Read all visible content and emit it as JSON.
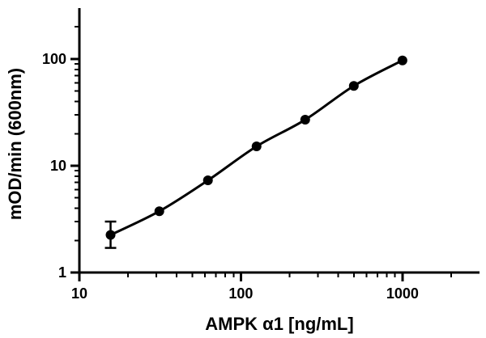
{
  "chart_data": {
    "type": "scatter",
    "xlabel": "AMPK α1 [ng/mL]",
    "ylabel": "mOD/min (600nm)",
    "x_scale": "log",
    "y_scale": "log",
    "xlim": [
      10,
      3000
    ],
    "ylim": [
      1,
      300
    ],
    "x_ticks": [
      10,
      100,
      1000
    ],
    "x_tick_labels": [
      "10",
      "100",
      "1000"
    ],
    "y_ticks": [
      1,
      10,
      100
    ],
    "y_tick_labels": [
      "1",
      "10",
      "100"
    ],
    "grid": false,
    "series": [
      {
        "points": [
          {
            "x": 15.6,
            "y": 2.25,
            "y_low": 1.7,
            "y_high": 3.0
          },
          {
            "x": 31.25,
            "y": 3.75
          },
          {
            "x": 62.5,
            "y": 7.3
          },
          {
            "x": 125,
            "y": 15.2
          },
          {
            "x": 250,
            "y": 27
          },
          {
            "x": 500,
            "y": 56
          },
          {
            "x": 1000,
            "y": 97
          }
        ]
      }
    ]
  }
}
